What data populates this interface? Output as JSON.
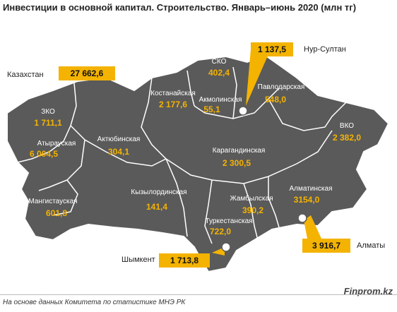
{
  "title": "Инвестиции в основной капитал. Строительство. Январь–июнь 2020 (млн тг)",
  "kazakhstan": {
    "label": "Казахстан",
    "value": "27 662,6"
  },
  "regions": [
    {
      "name": "СКО",
      "value": "402,4"
    },
    {
      "name": "Костанайская",
      "value": "2 177,6"
    },
    {
      "name": "Акмолинская",
      "value": "55,1"
    },
    {
      "name": "Павлодарская",
      "value": "548,0"
    },
    {
      "name": "ЗКО",
      "value": "1 711,1"
    },
    {
      "name": "Атырауская",
      "value": "6 004,5"
    },
    {
      "name": "Актюбинская",
      "value": "304,1"
    },
    {
      "name": "Карагандинская",
      "value": "2 300,5"
    },
    {
      "name": "ВКО",
      "value": "2 382,0"
    },
    {
      "name": "Мангистауская",
      "value": "601,8"
    },
    {
      "name": "Кызылординская",
      "value": "141,4"
    },
    {
      "name": "Жамбылская",
      "value": "390,2"
    },
    {
      "name": "Алматинская",
      "value": "3154,0"
    },
    {
      "name": "Туркестанская",
      "value": "722,0"
    }
  ],
  "cities": {
    "nur_sultan": {
      "name": "Нур-Султан",
      "value": "1 137,5"
    },
    "almaty": {
      "name": "Алматы",
      "value": "3 916,7"
    },
    "shymkent": {
      "name": "Шымкент",
      "value": "1 713,8"
    }
  },
  "colors": {
    "map_fill": "#5a5a5a",
    "border": "#ffffff",
    "accent": "#f5b301",
    "label": "#ffffff"
  },
  "source": "На основе данных  Комитета по статистике МНЭ РК",
  "brand": "Finprom.kz"
}
